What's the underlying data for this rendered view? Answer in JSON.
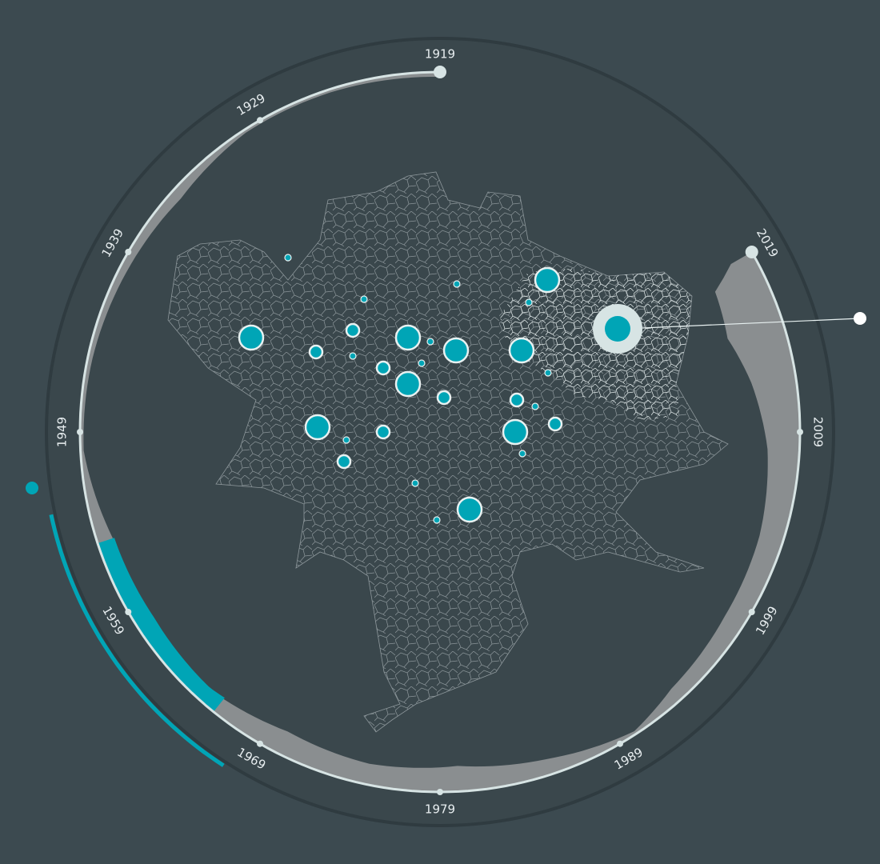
{
  "colors": {
    "background": "#3c4a50",
    "disk": "#3a474c",
    "disk_border": "#2f3b40",
    "timeline_axis": "#d7e4e4",
    "history_area": "#8a8e90",
    "accent": "#00a5b6",
    "map_lines": "#8d979b",
    "map_highlight_lines": "#e6eeee",
    "bubble_stroke": "#e8f1f1"
  },
  "timeline": {
    "year_labels": [
      "1919",
      "1929",
      "1939",
      "1949",
      "1959",
      "1969",
      "1979",
      "1989",
      "1999",
      "2009",
      "2019"
    ],
    "start_year": 1919,
    "end_year": 2019,
    "selected_range": [
      1955,
      1966
    ]
  },
  "map": {
    "cities": [
      {
        "id": "c1",
        "size": "large"
      },
      {
        "id": "c2",
        "size": "large"
      },
      {
        "id": "c3",
        "size": "large"
      },
      {
        "id": "c4",
        "size": "large"
      },
      {
        "id": "c5",
        "size": "large"
      },
      {
        "id": "c6",
        "size": "large"
      },
      {
        "id": "c7",
        "size": "large"
      },
      {
        "id": "c8",
        "size": "large"
      },
      {
        "id": "c9",
        "size": "large"
      },
      {
        "id": "c10",
        "size": "medium"
      },
      {
        "id": "c11",
        "size": "medium"
      },
      {
        "id": "c12",
        "size": "medium"
      },
      {
        "id": "c13",
        "size": "medium"
      },
      {
        "id": "c14",
        "size": "medium"
      },
      {
        "id": "c15",
        "size": "medium"
      },
      {
        "id": "c16",
        "size": "medium"
      },
      {
        "id": "c17",
        "size": "medium"
      },
      {
        "id": "c18",
        "size": "small"
      },
      {
        "id": "c19",
        "size": "small"
      },
      {
        "id": "c20",
        "size": "small"
      },
      {
        "id": "c21",
        "size": "small"
      },
      {
        "id": "c22",
        "size": "small"
      },
      {
        "id": "c23",
        "size": "small"
      },
      {
        "id": "c24",
        "size": "small"
      },
      {
        "id": "c25",
        "size": "small"
      },
      {
        "id": "c26",
        "size": "small"
      },
      {
        "id": "c27",
        "size": "small"
      },
      {
        "id": "c28",
        "size": "small"
      },
      {
        "id": "c29",
        "size": "small"
      },
      {
        "id": "c30",
        "size": "small"
      }
    ],
    "selected_city": "c_selected"
  }
}
